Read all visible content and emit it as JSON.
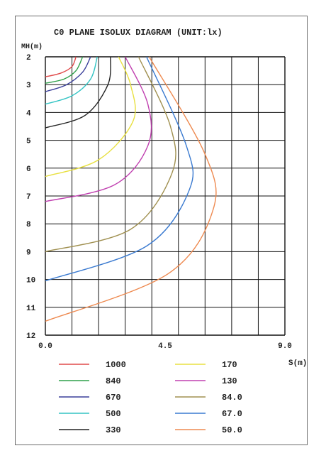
{
  "chart_data": {
    "type": "line",
    "title": "C0 PLANE ISOLUX DIAGRAM (UNIT:lx)",
    "xlabel": "S(m)",
    "ylabel": "MH(m)",
    "x_ticks": [
      "0.0",
      "4.5",
      "9.0"
    ],
    "y_ticks": [
      "2",
      "3",
      "4",
      "5",
      "6",
      "7",
      "8",
      "9",
      "10",
      "11",
      "12"
    ],
    "xlim": [
      0,
      9
    ],
    "ylim": [
      2,
      12
    ],
    "y_inverted": true,
    "grid": true,
    "legend_position": "bottom",
    "series": [
      {
        "name": "1000",
        "color": "#e04a4a",
        "points": [
          [
            0,
            2.72
          ],
          [
            0.6,
            2.58
          ],
          [
            1.0,
            2.35
          ],
          [
            1.15,
            2.0
          ]
        ]
      },
      {
        "name": "840",
        "color": "#2ea04a",
        "points": [
          [
            0,
            2.95
          ],
          [
            0.7,
            2.8
          ],
          [
            1.15,
            2.5
          ],
          [
            1.4,
            2.0
          ]
        ]
      },
      {
        "name": "670",
        "color": "#3a3f9a",
        "points": [
          [
            0,
            3.25
          ],
          [
            0.8,
            3.0
          ],
          [
            1.4,
            2.55
          ],
          [
            1.7,
            2.0
          ]
        ]
      },
      {
        "name": "500",
        "color": "#33c4c4",
        "points": [
          [
            0,
            3.7
          ],
          [
            1.0,
            3.4
          ],
          [
            1.7,
            2.8
          ],
          [
            1.95,
            2.0
          ]
        ]
      },
      {
        "name": "330",
        "color": "#222222",
        "points": [
          [
            0,
            4.55
          ],
          [
            1.5,
            4.1
          ],
          [
            2.35,
            3.0
          ],
          [
            2.45,
            2.0
          ]
        ]
      },
      {
        "name": "170",
        "color": "#e8e040",
        "points": [
          [
            0,
            6.3
          ],
          [
            2.0,
            5.7
          ],
          [
            3.3,
            4.3
          ],
          [
            3.2,
            3.0
          ],
          [
            2.75,
            2.0
          ]
        ]
      },
      {
        "name": "130",
        "color": "#c040b0",
        "points": [
          [
            0,
            7.2
          ],
          [
            2.6,
            6.6
          ],
          [
            3.85,
            5.2
          ],
          [
            3.85,
            3.7
          ],
          [
            3.0,
            2.0
          ]
        ]
      },
      {
        "name": "84.0",
        "color": "#a09050",
        "points": [
          [
            0,
            9.0
          ],
          [
            3.2,
            8.2
          ],
          [
            4.75,
            6.2
          ],
          [
            4.7,
            4.5
          ],
          [
            3.5,
            2.0
          ]
        ]
      },
      {
        "name": "67.0",
        "color": "#3a7ad0",
        "points": [
          [
            0,
            10.05
          ],
          [
            3.8,
            8.8
          ],
          [
            5.4,
            6.8
          ],
          [
            5.3,
            5.2
          ],
          [
            3.8,
            2.0
          ]
        ]
      },
      {
        "name": "50.0",
        "color": "#ee8a50",
        "points": [
          [
            0,
            11.5
          ],
          [
            4.6,
            9.8
          ],
          [
            6.3,
            7.5
          ],
          [
            6.0,
            5.5
          ],
          [
            3.9,
            2.0
          ]
        ]
      }
    ]
  }
}
